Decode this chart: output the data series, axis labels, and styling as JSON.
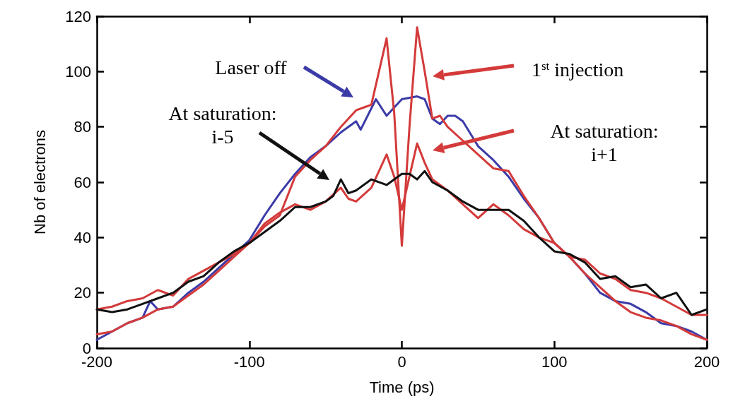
{
  "chart_data": {
    "type": "line",
    "xlabel": "Time (ps)",
    "ylabel": "Nb of electrons",
    "xlim": [
      -200,
      200
    ],
    "xticks": [
      -200,
      -100,
      0,
      100,
      200
    ],
    "ylim": [
      0,
      120
    ],
    "yticks": [
      0,
      20,
      40,
      60,
      80,
      100,
      120
    ],
    "grid": false,
    "marker": "none",
    "line_style": "solid",
    "series": [
      {
        "color": "#3b3ba8",
        "x": [
          -200,
          -190,
          -180,
          -170,
          -165,
          -160,
          -150,
          -140,
          -130,
          -120,
          -110,
          -100,
          -90,
          -80,
          -70,
          -60,
          -50,
          -40,
          -30,
          -27,
          -17,
          -10,
          0,
          10,
          15,
          20,
          25,
          30,
          35,
          40,
          50,
          60,
          70,
          80,
          90,
          100,
          110,
          120,
          130,
          140,
          150,
          160,
          170,
          180,
          190,
          200
        ],
        "values": [
          3,
          6,
          9,
          11,
          17,
          14,
          15,
          20,
          24,
          29,
          34,
          39,
          48,
          56,
          63,
          69,
          73,
          78,
          82,
          79,
          90,
          84,
          90,
          91,
          90,
          83,
          81,
          84,
          84,
          82,
          73,
          68,
          62,
          54,
          47,
          38,
          33,
          27,
          20,
          17,
          16,
          13,
          9,
          8,
          6,
          3
        ]
      },
      {
        "color": "#d43a3a",
        "x": [
          -200,
          -190,
          -180,
          -170,
          -160,
          -150,
          -140,
          -130,
          -120,
          -110,
          -100,
          -90,
          -80,
          -70,
          -60,
          -50,
          -40,
          -30,
          -25,
          -20,
          -15,
          -10,
          -5,
          0,
          5,
          10,
          15,
          20,
          25,
          30,
          40,
          50,
          60,
          70,
          80,
          90,
          100,
          110,
          120,
          130,
          140,
          150,
          160,
          170,
          180,
          190,
          200
        ],
        "values": [
          5,
          6,
          9,
          11,
          14,
          15,
          19,
          23,
          28,
          33,
          38,
          44,
          48,
          62,
          68,
          73,
          80,
          86,
          87,
          88,
          100,
          112,
          85,
          37,
          80,
          116,
          100,
          83,
          84,
          80,
          75,
          70,
          65,
          64,
          55,
          47,
          38,
          33,
          27,
          22,
          17,
          13,
          11,
          10,
          8,
          5,
          3
        ]
      },
      {
        "color": "#d43a3a",
        "x": [
          -200,
          -190,
          -180,
          -170,
          -160,
          -150,
          -140,
          -130,
          -120,
          -110,
          -100,
          -90,
          -80,
          -70,
          -60,
          -50,
          -40,
          -35,
          -30,
          -20,
          -10,
          -5,
          0,
          5,
          10,
          15,
          20,
          30,
          40,
          50,
          60,
          70,
          80,
          90,
          100,
          110,
          120,
          130,
          140,
          150,
          160,
          170,
          180,
          190,
          200
        ],
        "values": [
          14,
          15,
          17,
          18,
          21,
          19,
          25,
          28,
          31,
          34,
          38,
          45,
          49,
          52,
          50,
          53,
          58,
          54,
          53,
          58,
          70,
          62,
          50,
          62,
          74,
          67,
          61,
          57,
          52,
          47,
          52,
          48,
          43,
          40,
          38,
          33,
          32,
          27,
          25,
          21,
          20,
          18,
          15,
          12,
          12
        ]
      },
      {
        "color": "#111111",
        "x": [
          -200,
          -190,
          -180,
          -170,
          -160,
          -150,
          -140,
          -130,
          -120,
          -110,
          -100,
          -90,
          -80,
          -70,
          -60,
          -50,
          -45,
          -40,
          -35,
          -30,
          -20,
          -10,
          0,
          5,
          10,
          15,
          20,
          30,
          40,
          50,
          60,
          70,
          80,
          90,
          100,
          110,
          120,
          130,
          140,
          150,
          160,
          170,
          180,
          190,
          200
        ],
        "values": [
          14,
          13,
          14,
          16,
          18,
          20,
          24,
          26,
          31,
          35,
          38,
          42,
          46,
          51,
          51,
          53,
          55,
          61,
          56,
          57,
          61,
          59,
          63,
          63,
          61,
          64,
          60,
          57,
          53,
          50,
          50,
          50,
          46,
          40,
          35,
          34,
          31,
          25,
          26,
          22,
          23,
          18,
          20,
          12,
          14
        ]
      }
    ],
    "annotations": [
      "Laser off",
      "1$^{st}$ injection",
      "At saturation:\ni+1",
      "At saturation:\ni-5"
    ]
  }
}
